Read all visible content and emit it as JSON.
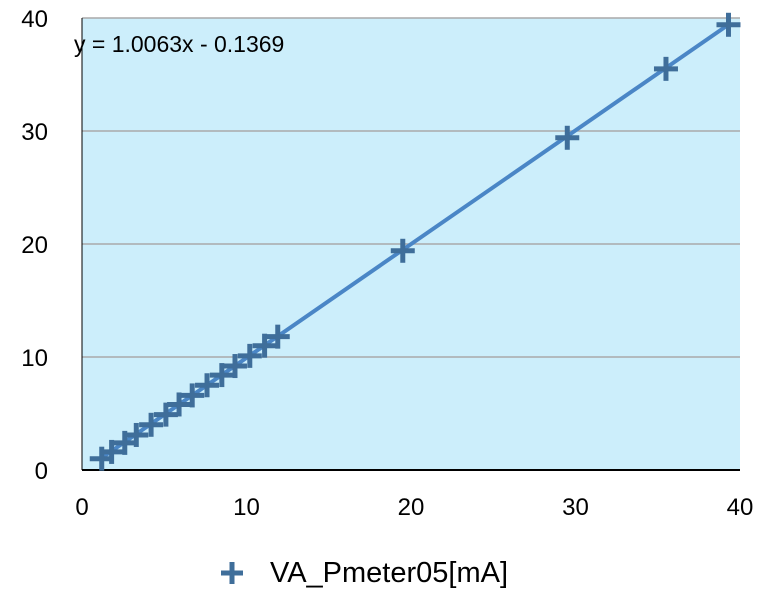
{
  "chart_data": {
    "type": "scatter",
    "title": "",
    "xlabel": "",
    "ylabel": "",
    "xlim": [
      0,
      40
    ],
    "ylim": [
      0,
      40
    ],
    "x_ticks": [
      0,
      10,
      20,
      30,
      40
    ],
    "y_ticks": [
      0,
      10,
      20,
      30,
      40
    ],
    "grid": "horizontal",
    "legend_position": "bottom",
    "plot_background": "#CCEEFB",
    "series": [
      {
        "name": "VA_Pmeter05[mA]",
        "marker": "plus",
        "color": "#3F6E9A",
        "points": [
          [
            1.2,
            1.0
          ],
          [
            1.8,
            1.6
          ],
          [
            2.6,
            2.4
          ],
          [
            3.3,
            3.1
          ],
          [
            4.2,
            4.0
          ],
          [
            5.1,
            4.9
          ],
          [
            5.9,
            5.8
          ],
          [
            6.7,
            6.6
          ],
          [
            7.6,
            7.5
          ],
          [
            8.5,
            8.4
          ],
          [
            9.3,
            9.2
          ],
          [
            10.2,
            10.1
          ],
          [
            11.1,
            11.0
          ],
          [
            11.9,
            11.8
          ],
          [
            19.5,
            19.4
          ],
          [
            29.5,
            29.4
          ],
          [
            35.5,
            35.5
          ],
          [
            39.3,
            39.4
          ]
        ]
      }
    ],
    "trendline": {
      "slope": 1.0063,
      "intercept": -0.1369,
      "color": "#4A86C6",
      "label": "y = 1.0063x - 0.1369"
    },
    "legend": {
      "marker_color": "#3F6E9A"
    }
  }
}
